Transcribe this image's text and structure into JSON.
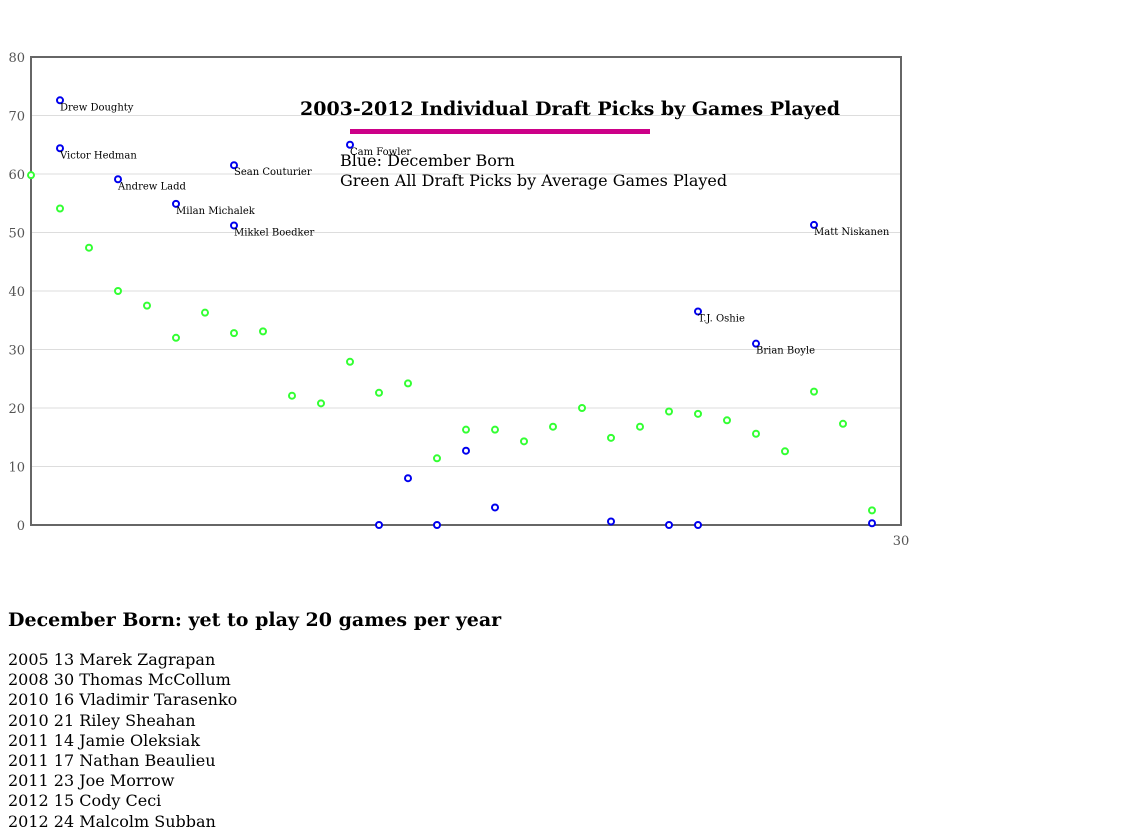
{
  "chart_data": {
    "type": "scatter",
    "title": "2003-2012 Individual Draft Picks by Games Played",
    "subtitle_lines": [
      "Blue: December Born",
      "Green All Draft Picks by Average Games Played"
    ],
    "xlim": [
      0,
      30
    ],
    "ylim": [
      0,
      80
    ],
    "y_ticks": [
      0,
      10,
      20,
      30,
      40,
      50,
      60,
      70,
      80
    ],
    "x_tick_labels": [
      "30"
    ],
    "grid": "horizontal",
    "colors": {
      "blue": "#0000ee",
      "green": "#33ff33",
      "title_bar": "#cc0088",
      "grid": "#dddddd",
      "axis": "#666666"
    },
    "series": [
      {
        "key": "december",
        "points": [
          {
            "x": 1,
            "y": 72.6,
            "label": "Drew Doughty"
          },
          {
            "x": 1,
            "y": 64.4,
            "label": "Victor Hedman"
          },
          {
            "x": 3,
            "y": 59.1,
            "label": "Andrew Ladd"
          },
          {
            "x": 5,
            "y": 54.9,
            "label": "Milan Michalek"
          },
          {
            "x": 7,
            "y": 61.5,
            "label": "Sean Couturier"
          },
          {
            "x": 7,
            "y": 51.2,
            "label": "Mikkel Boedker"
          },
          {
            "x": 11,
            "y": 65,
            "label": "Cam Fowler"
          },
          {
            "x": 12,
            "y": 0
          },
          {
            "x": 13,
            "y": 8
          },
          {
            "x": 14,
            "y": 0
          },
          {
            "x": 15,
            "y": 12.7
          },
          {
            "x": 16,
            "y": 3
          },
          {
            "x": 20,
            "y": 0.6
          },
          {
            "x": 22,
            "y": 0
          },
          {
            "x": 23,
            "y": 0
          },
          {
            "x": 23,
            "y": 36.5,
            "label": "T.J. Oshie"
          },
          {
            "x": 25,
            "y": 31,
            "label": "Brian Boyle"
          },
          {
            "x": 27,
            "y": 51.3,
            "label": "Matt Niskanen"
          },
          {
            "x": 29,
            "y": 0.3
          }
        ]
      },
      {
        "key": "average",
        "points": [
          {
            "x": 0,
            "y": 59.8
          },
          {
            "x": 1,
            "y": 54.1
          },
          {
            "x": 2,
            "y": 47.4
          },
          {
            "x": 3,
            "y": 40
          },
          {
            "x": 4,
            "y": 37.5
          },
          {
            "x": 5,
            "y": 32
          },
          {
            "x": 6,
            "y": 36.3
          },
          {
            "x": 7,
            "y": 32.8
          },
          {
            "x": 8,
            "y": 33.1
          },
          {
            "x": 9,
            "y": 22.1
          },
          {
            "x": 10,
            "y": 20.8
          },
          {
            "x": 11,
            "y": 27.9
          },
          {
            "x": 12,
            "y": 22.6
          },
          {
            "x": 13,
            "y": 24.2
          },
          {
            "x": 14,
            "y": 11.4
          },
          {
            "x": 15,
            "y": 16.3
          },
          {
            "x": 16,
            "y": 16.3
          },
          {
            "x": 17,
            "y": 14.3
          },
          {
            "x": 18,
            "y": 16.8
          },
          {
            "x": 19,
            "y": 20
          },
          {
            "x": 20,
            "y": 14.9
          },
          {
            "x": 21,
            "y": 16.8
          },
          {
            "x": 22,
            "y": 19.4
          },
          {
            "x": 23,
            "y": 19
          },
          {
            "x": 24,
            "y": 17.9
          },
          {
            "x": 25,
            "y": 15.6
          },
          {
            "x": 26,
            "y": 12.6
          },
          {
            "x": 27,
            "y": 22.8
          },
          {
            "x": 28,
            "y": 17.3
          },
          {
            "x": 29,
            "y": 2.5
          }
        ]
      }
    ]
  },
  "list_section": {
    "heading": "December Born: yet to play 20 games per year",
    "items": [
      "2005 13 Marek Zagrapan",
      "2008 30 Thomas McCollum",
      "2010 16 Vladimir Tarasenko",
      "2010 21 Riley Sheahan",
      "2011 14 Jamie Oleksiak",
      "2011 17 Nathan Beaulieu",
      "2011 23 Joe Morrow",
      "2012 15 Cody Ceci",
      "2012 24 Malcolm Subban"
    ]
  }
}
